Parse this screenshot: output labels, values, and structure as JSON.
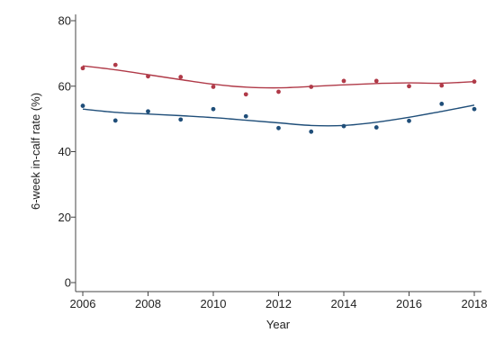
{
  "chart_data": {
    "type": "scatter",
    "title": "",
    "xlabel": "Year",
    "ylabel": "6-week in-calf rate (%)",
    "xlim": [
      2006,
      2018
    ],
    "ylim": [
      0,
      80
    ],
    "x_ticks": [
      2006,
      2008,
      2010,
      2012,
      2014,
      2016,
      2018
    ],
    "y_ticks": [
      0,
      20,
      40,
      60,
      80
    ],
    "grid": false,
    "legend": "none",
    "series": [
      {
        "color": "#b03a48",
        "points": [
          {
            "x": 2006,
            "y": 65.5
          },
          {
            "x": 2007,
            "y": 66.5
          },
          {
            "x": 2008,
            "y": 63.0
          },
          {
            "x": 2009,
            "y": 62.8
          },
          {
            "x": 2010,
            "y": 59.8
          },
          {
            "x": 2011,
            "y": 57.5
          },
          {
            "x": 2012,
            "y": 58.3
          },
          {
            "x": 2013,
            "y": 59.8
          },
          {
            "x": 2014,
            "y": 61.6
          },
          {
            "x": 2015,
            "y": 61.6
          },
          {
            "x": 2016,
            "y": 60.0
          },
          {
            "x": 2017,
            "y": 60.2
          },
          {
            "x": 2018,
            "y": 61.4
          }
        ],
        "trend": [
          {
            "x": 2006,
            "y": 66.2
          },
          {
            "x": 2007,
            "y": 65.0
          },
          {
            "x": 2008,
            "y": 63.5
          },
          {
            "x": 2009,
            "y": 62.0
          },
          {
            "x": 2010,
            "y": 60.6
          },
          {
            "x": 2011,
            "y": 59.7
          },
          {
            "x": 2012,
            "y": 59.5
          },
          {
            "x": 2013,
            "y": 59.9
          },
          {
            "x": 2014,
            "y": 60.4
          },
          {
            "x": 2015,
            "y": 60.8
          },
          {
            "x": 2016,
            "y": 61.0
          },
          {
            "x": 2017,
            "y": 60.9
          },
          {
            "x": 2018,
            "y": 61.4
          }
        ]
      },
      {
        "color": "#1f4e79",
        "points": [
          {
            "x": 2006,
            "y": 54.0
          },
          {
            "x": 2007,
            "y": 49.5
          },
          {
            "x": 2008,
            "y": 52.3
          },
          {
            "x": 2009,
            "y": 49.8
          },
          {
            "x": 2010,
            "y": 53.0
          },
          {
            "x": 2011,
            "y": 50.8
          },
          {
            "x": 2012,
            "y": 47.2
          },
          {
            "x": 2013,
            "y": 46.1
          },
          {
            "x": 2014,
            "y": 47.8
          },
          {
            "x": 2015,
            "y": 47.4
          },
          {
            "x": 2016,
            "y": 49.4
          },
          {
            "x": 2017,
            "y": 54.6
          },
          {
            "x": 2018,
            "y": 53.0
          }
        ],
        "trend": [
          {
            "x": 2006,
            "y": 53.0
          },
          {
            "x": 2007,
            "y": 52.0
          },
          {
            "x": 2008,
            "y": 51.5
          },
          {
            "x": 2009,
            "y": 51.0
          },
          {
            "x": 2010,
            "y": 50.4
          },
          {
            "x": 2011,
            "y": 49.6
          },
          {
            "x": 2012,
            "y": 48.8
          },
          {
            "x": 2013,
            "y": 48.0
          },
          {
            "x": 2014,
            "y": 48.0
          },
          {
            "x": 2015,
            "y": 49.0
          },
          {
            "x": 2016,
            "y": 50.5
          },
          {
            "x": 2017,
            "y": 52.3
          },
          {
            "x": 2018,
            "y": 54.2
          }
        ]
      }
    ]
  }
}
